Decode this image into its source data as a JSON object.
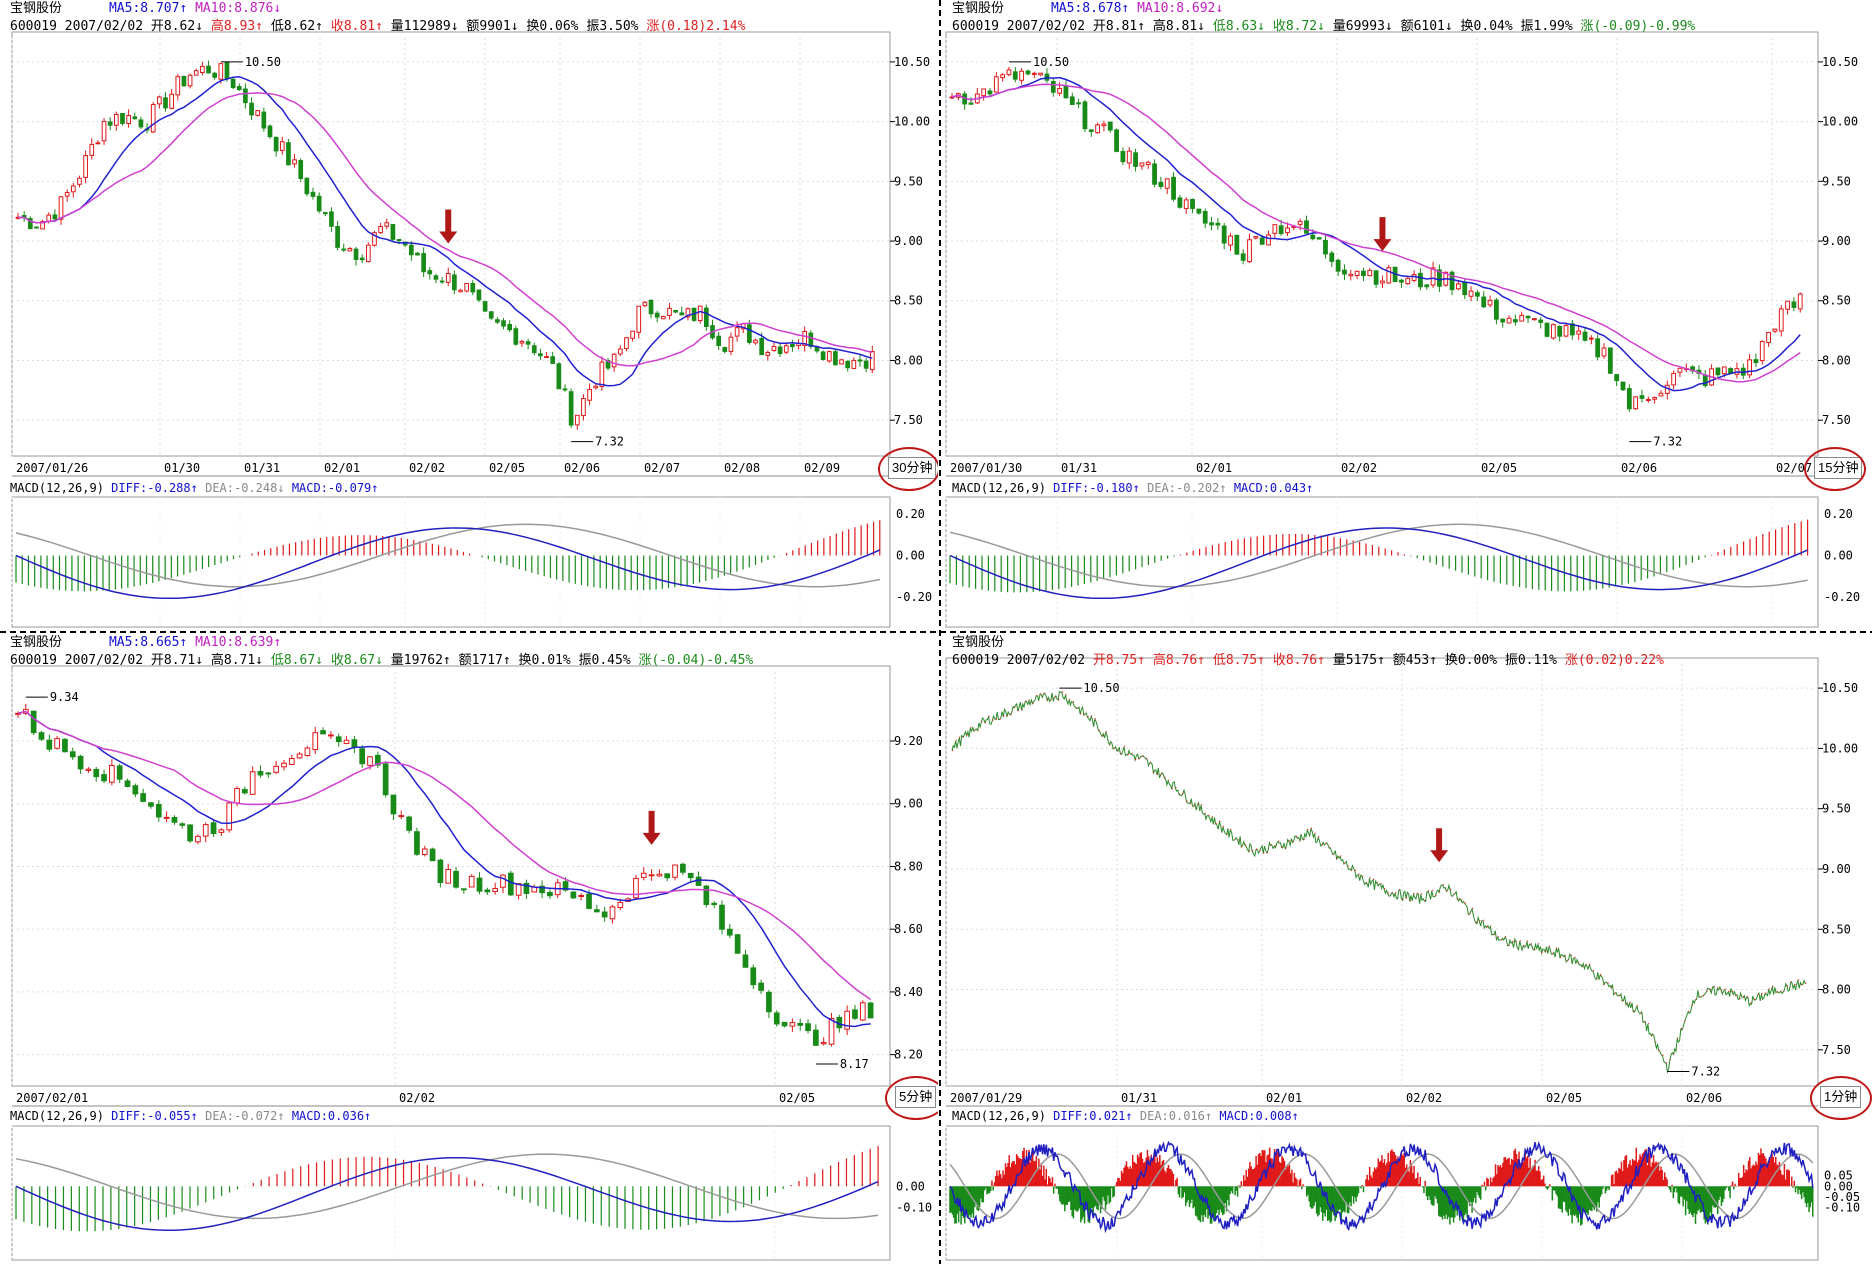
{
  "panels": [
    {
      "id": "p30",
      "stock_name": "宝钢股份",
      "ma5": "MA5:8.707↑",
      "ma10": "MA10:8.876↓",
      "code": "600019",
      "date": "2007/02/02",
      "open": "开8.62↓",
      "high": "高8.93↑",
      "low": "低8.62↑",
      "close": "收8.81↑",
      "vol": "量112989↓",
      "amt": "额9901↓",
      "turn": "换0.06%",
      "amp": "振3.50%",
      "chg": "涨(0.18)2.14%",
      "timeframe": "30分钟",
      "macd_label": "MACD(12,26,9)",
      "diff": "DIFF:-0.288↑",
      "dea": "DEA:-0.248↓",
      "macd": "MACD:-0.079↑",
      "high_ann": "10.50",
      "low_ann": "7.32",
      "x_labels": [
        "2007/01/26",
        "01/30",
        "01/31",
        "02/01",
        "02/02",
        "02/05",
        "02/06",
        "02/07",
        "02/08",
        "02/09"
      ],
      "y_labels": [
        "10.50",
        "10.00",
        "9.50",
        "9.00",
        "8.50",
        "8.00",
        "7.50"
      ],
      "macd_y_labels": [
        "0.20",
        "0.00",
        "-0.20"
      ]
    },
    {
      "id": "p15",
      "stock_name": "宝钢股份",
      "ma5": "MA5:8.678↑",
      "ma10": "MA10:8.692↓",
      "code": "600019",
      "date": "2007/02/02",
      "open": "开8.81↑",
      "high": "高8.81↓",
      "low": "低8.63↓",
      "close": "收8.72↓",
      "vol": "量69993↓",
      "amt": "额6101↓",
      "turn": "换0.04%",
      "amp": "振1.99%",
      "chg": "涨(-0.09)-0.99%",
      "timeframe": "15分钟",
      "macd_label": "MACD(12,26,9)",
      "diff": "DIFF:-0.180↑",
      "dea": "DEA:-0.202↑",
      "macd": "MACD:0.043↑",
      "high_ann": "10.50",
      "low_ann": "7.32",
      "x_labels": [
        "2007/01/30",
        "01/31",
        "02/01",
        "02/02",
        "02/05",
        "02/06",
        "02/07"
      ],
      "y_labels": [
        "10.50",
        "10.00",
        "9.50",
        "9.00",
        "8.50",
        "8.00",
        "7.50"
      ],
      "macd_y_labels": [
        "0.20",
        "0.00",
        "-0.20"
      ]
    },
    {
      "id": "p5",
      "stock_name": "宝钢股份",
      "ma5": "MA5:8.665↑",
      "ma10": "MA10:8.639↑",
      "code": "600019",
      "date": "2007/02/02",
      "open": "开8.71↓",
      "high": "高8.71↓",
      "low": "低8.67↓",
      "close": "收8.67↓",
      "vol": "量19762↑",
      "amt": "额1717↑",
      "turn": "换0.01%",
      "amp": "振0.45%",
      "chg": "涨(-0.04)-0.45%",
      "timeframe": "5分钟",
      "macd_label": "MACD(12,26,9)",
      "diff": "DIFF:-0.055↑",
      "dea": "DEA:-0.072↑",
      "macd": "MACD:0.036↑",
      "high_ann": "9.34",
      "low_ann": "8.17",
      "x_labels": [
        "2007/02/01",
        "02/02",
        "02/05"
      ],
      "y_labels": [
        "9.20",
        "9.00",
        "8.80",
        "8.60",
        "8.40",
        "8.20"
      ],
      "macd_y_labels": [
        "0.00",
        "-0.10"
      ]
    },
    {
      "id": "p1",
      "stock_name": "宝钢股份",
      "ma5": "",
      "ma10": "",
      "code": "600019",
      "date": "2007/02/02",
      "open": "开8.75↑",
      "high": "高8.76↑",
      "low": "低8.75↑",
      "close": "收8.76↑",
      "vol": "量5175↑",
      "amt": "额453↑",
      "turn": "换0.00%",
      "amp": "振0.11%",
      "chg": "涨(0.02)0.22%",
      "timeframe": "1分钟",
      "macd_label": "MACD(12,26,9)",
      "diff": "DIFF:0.021↑",
      "dea": "DEA:0.016↑",
      "macd": "MACD:0.008↑",
      "high_ann": "10.50",
      "low_ann": "7.32",
      "x_labels": [
        "2007/01/29",
        "01/31",
        "02/01",
        "02/02",
        "02/05",
        "02/06"
      ],
      "y_labels": [
        "10.50",
        "10.00",
        "9.50",
        "9.00",
        "8.50",
        "8.00",
        "7.50"
      ],
      "macd_y_labels": [
        "0.05",
        "0.00",
        "-0.05",
        "-0.10"
      ]
    }
  ],
  "chart_data": [
    {
      "type": "candlestick",
      "timeframe": "30分钟",
      "ma": [
        "MA5",
        "MA10"
      ],
      "ylim": [
        7.3,
        10.6
      ],
      "high": 10.5,
      "low": 7.32,
      "path": [
        9.2,
        9.15,
        9.3,
        9.6,
        10.0,
        10.05,
        10.0,
        10.2,
        10.4,
        10.45,
        10.35,
        10.1,
        9.85,
        9.6,
        9.3,
        9.0,
        8.9,
        9.1,
        9.0,
        8.75,
        8.7,
        8.6,
        8.3,
        8.25,
        8.15,
        7.95,
        7.5,
        7.85,
        8.0,
        8.4,
        8.45,
        8.35,
        8.4,
        8.15,
        8.25,
        8.1,
        8.15,
        8.2,
        8.05,
        8.0,
        8.03
      ]
    },
    {
      "type": "candlestick",
      "timeframe": "15分钟",
      "ma": [
        "MA5",
        "MA10"
      ],
      "ylim": [
        7.3,
        10.6
      ],
      "high": 10.5,
      "low": 7.32,
      "path": [
        10.25,
        10.2,
        10.35,
        10.4,
        10.3,
        10.1,
        9.95,
        9.75,
        9.6,
        9.45,
        9.2,
        9.1,
        8.9,
        9.1,
        9.15,
        9.0,
        8.8,
        8.75,
        8.7,
        8.65,
        8.7,
        8.65,
        8.45,
        8.35,
        8.3,
        8.25,
        8.15,
        8.05,
        7.6,
        7.75,
        7.9,
        7.85,
        7.9,
        7.95,
        8.35,
        8.5
      ]
    },
    {
      "type": "candlestick",
      "timeframe": "5分钟",
      "ma": [
        "MA5",
        "MA10"
      ],
      "ylim": [
        8.15,
        9.38
      ],
      "high": 9.34,
      "low": 8.17,
      "path": [
        9.3,
        9.2,
        9.15,
        9.1,
        9.05,
        8.95,
        8.9,
        8.95,
        9.1,
        9.15,
        9.2,
        9.18,
        9.15,
        8.95,
        8.8,
        8.75,
        8.75,
        8.74,
        8.73,
        8.7,
        8.65,
        8.75,
        8.8,
        8.75,
        8.6,
        8.45,
        8.3,
        8.25,
        8.3,
        8.35
      ]
    },
    {
      "type": "line",
      "timeframe": "1分钟",
      "ylim": [
        7.3,
        10.6
      ],
      "high": 10.5,
      "low": 7.32,
      "path": [
        10.0,
        10.2,
        10.3,
        10.4,
        10.45,
        10.25,
        10.0,
        9.9,
        9.7,
        9.5,
        9.3,
        9.15,
        9.2,
        9.3,
        9.1,
        8.9,
        8.8,
        8.75,
        8.85,
        8.6,
        8.4,
        8.35,
        8.3,
        8.2,
        8.0,
        7.8,
        7.35,
        7.95,
        8.0,
        7.9,
        8.0,
        8.05
      ]
    }
  ]
}
